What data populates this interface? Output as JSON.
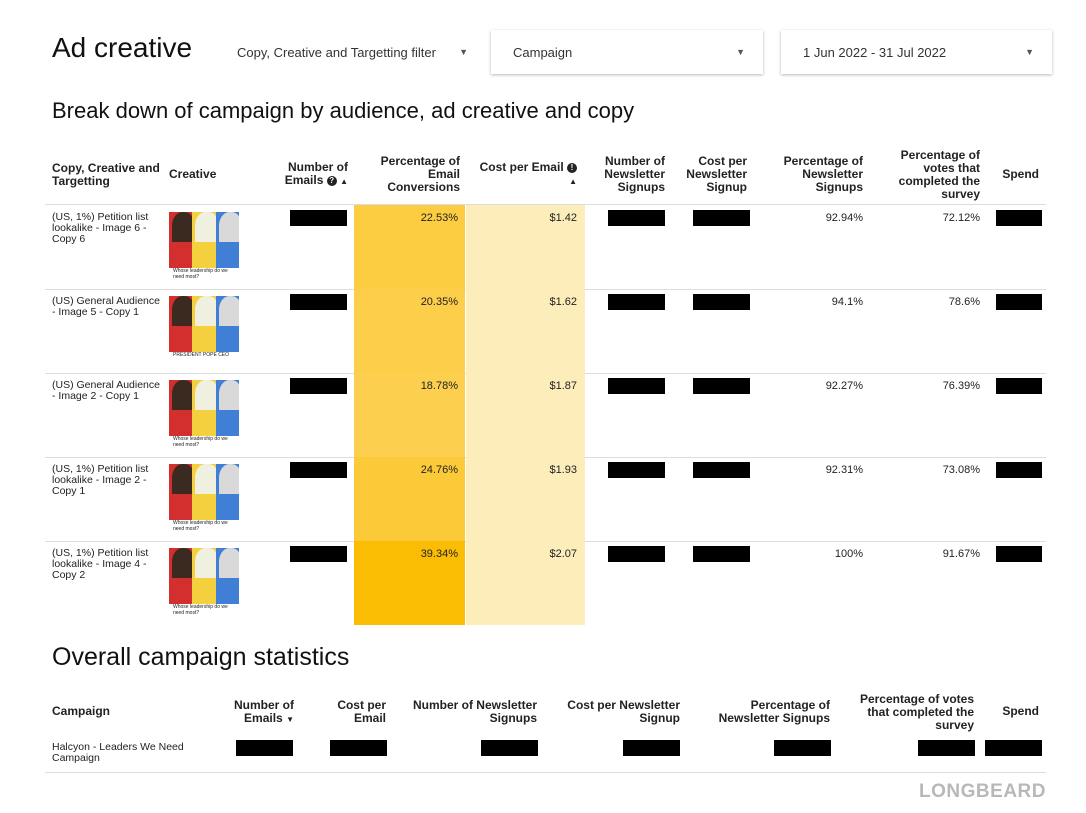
{
  "header": {
    "title": "Ad creative",
    "filters": [
      {
        "label": "Copy, Creative and Targetting filter"
      },
      {
        "label": "Campaign"
      },
      {
        "label": "1 Jun 2022 - 31 Jul 2022"
      }
    ]
  },
  "breakdown": {
    "title": "Break down of campaign by audience, ad creative and copy",
    "columns": {
      "copy": "Copy, Creative and Targetting",
      "creative": "Creative",
      "emails": "Number of Emails",
      "pct_email_conv": "Percentage of Email Conversions",
      "cost_email": "Cost per Email",
      "newsletter": "Number of Newsletter Signups",
      "cost_newsletter": "Cost per Newsletter Signup",
      "pct_newsletter": "Percentage of Newsletter Signups",
      "pct_votes": "Percentage of votes that completed the survey",
      "spend": "Spend"
    },
    "rows": [
      {
        "label": "(US, 1%) Petition list lookalike - Image 6 - Copy 6",
        "creative_caption": "Whose leadership do we need most?",
        "pct_email_conv": "22.53%",
        "heat": 0.57,
        "cost_email": "$1.42",
        "pct_newsletter": "92.94%",
        "pct_votes": "72.12%"
      },
      {
        "label": "(US) General Audience - Image 5 - Copy 1",
        "creative_caption": "PRESIDENT POPE CEO",
        "pct_email_conv": "20.35%",
        "heat": 0.52,
        "cost_email": "$1.62",
        "pct_newsletter": "94.1%",
        "pct_votes": "78.6%"
      },
      {
        "label": "(US) General Audience - Image 2 - Copy 1",
        "creative_caption": "Whose leadership do we need most?",
        "pct_email_conv": "18.78%",
        "heat": 0.48,
        "cost_email": "$1.87",
        "pct_newsletter": "92.27%",
        "pct_votes": "76.39%"
      },
      {
        "label": "(US, 1%) Petition list lookalike - Image 2 - Copy 1",
        "creative_caption": "Whose leadership do we need most?",
        "pct_email_conv": "24.76%",
        "heat": 0.63,
        "cost_email": "$1.93",
        "pct_newsletter": "92.31%",
        "pct_votes": "73.08%"
      },
      {
        "label": "(US, 1%) Petition list lookalike - Image 4 - Copy 2",
        "creative_caption": "Whose leadership do we need most?",
        "pct_email_conv": "39.34%",
        "heat": 1.0,
        "cost_email": "$2.07",
        "pct_newsletter": "100%",
        "pct_votes": "91.67%"
      }
    ],
    "icons": {
      "emails_info": "?",
      "cost_info": "!"
    }
  },
  "overall": {
    "title": "Overall campaign statistics",
    "columns": {
      "campaign": "Campaign",
      "emails": "Number of Emails",
      "cost_email": "Cost per Email",
      "newsletter": "Number of Newsletter Signups",
      "cost_newsletter": "Cost per Newsletter Signup",
      "pct_newsletter": "Percentage of Newsletter Signups",
      "pct_votes": "Percentage of votes that completed the survey",
      "spend": "Spend"
    },
    "campaign_name": "Halcyon - Leaders We Need Campaign"
  },
  "colors": {
    "heat_strong": "#fbbc04",
    "heat_light": "#fde293",
    "cost_bg": "#fdedbb"
  },
  "brand": "LONGBEARD"
}
